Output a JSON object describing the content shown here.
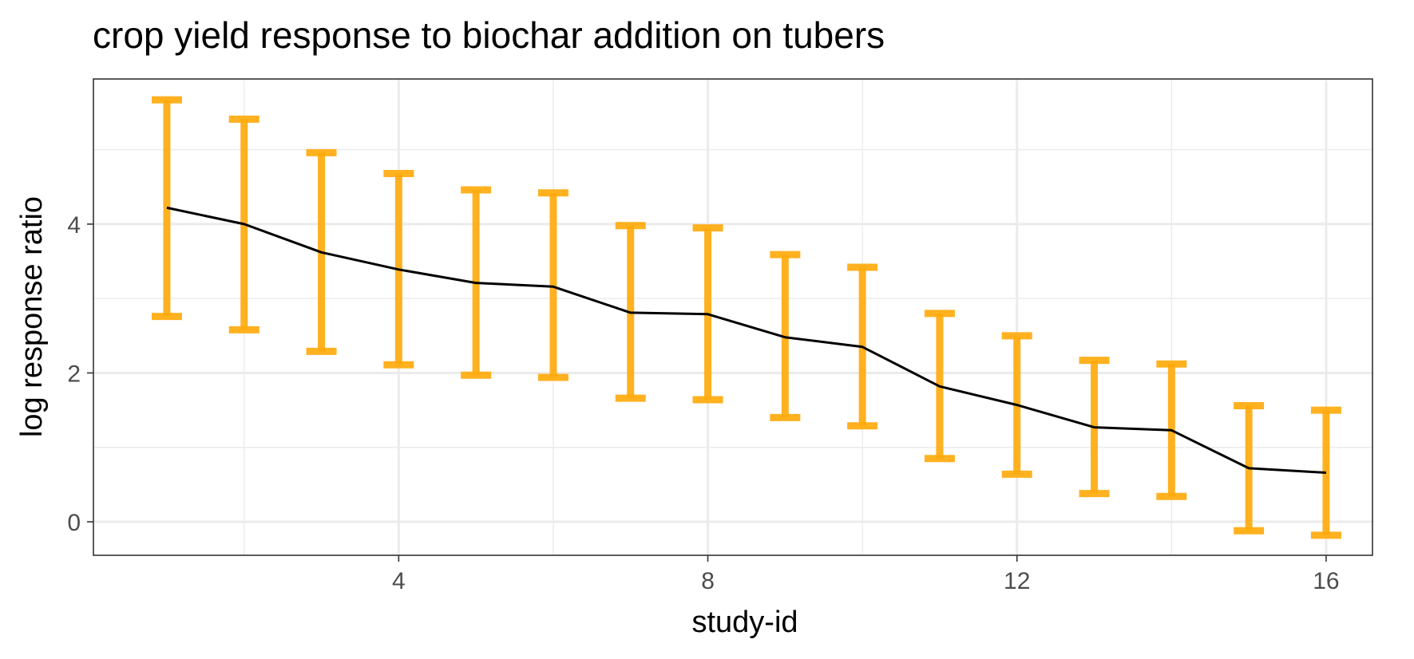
{
  "chart_data": {
    "type": "line",
    "title": "crop yield response to biochar addition on tubers",
    "xlabel": "study-id",
    "ylabel": "log response ratio",
    "xlim": [
      0.05,
      16.6
    ],
    "ylim": [
      -0.45,
      5.95
    ],
    "x_ticks": [
      4,
      8,
      12,
      16
    ],
    "y_ticks": [
      0,
      2,
      4
    ],
    "grid": true,
    "legend": "none",
    "line_color": "#000000",
    "errorbar_color": "#FFAA0D",
    "series": [
      {
        "x": [
          1,
          2,
          3,
          4,
          5,
          6,
          7,
          8,
          9,
          10,
          11,
          12,
          13,
          14,
          15,
          16
        ],
        "y": [
          4.22,
          4.0,
          3.62,
          3.39,
          3.21,
          3.16,
          2.81,
          2.79,
          2.48,
          2.35,
          1.82,
          1.57,
          1.27,
          1.23,
          0.72,
          0.66
        ],
        "lower": [
          2.76,
          2.58,
          2.29,
          2.11,
          1.97,
          1.94,
          1.66,
          1.64,
          1.4,
          1.29,
          0.85,
          0.64,
          0.38,
          0.34,
          -0.12,
          -0.18
        ],
        "upper": [
          5.67,
          5.41,
          4.96,
          4.68,
          4.46,
          4.42,
          3.98,
          3.95,
          3.59,
          3.42,
          2.8,
          2.5,
          2.17,
          2.12,
          1.56,
          1.5
        ]
      }
    ]
  }
}
